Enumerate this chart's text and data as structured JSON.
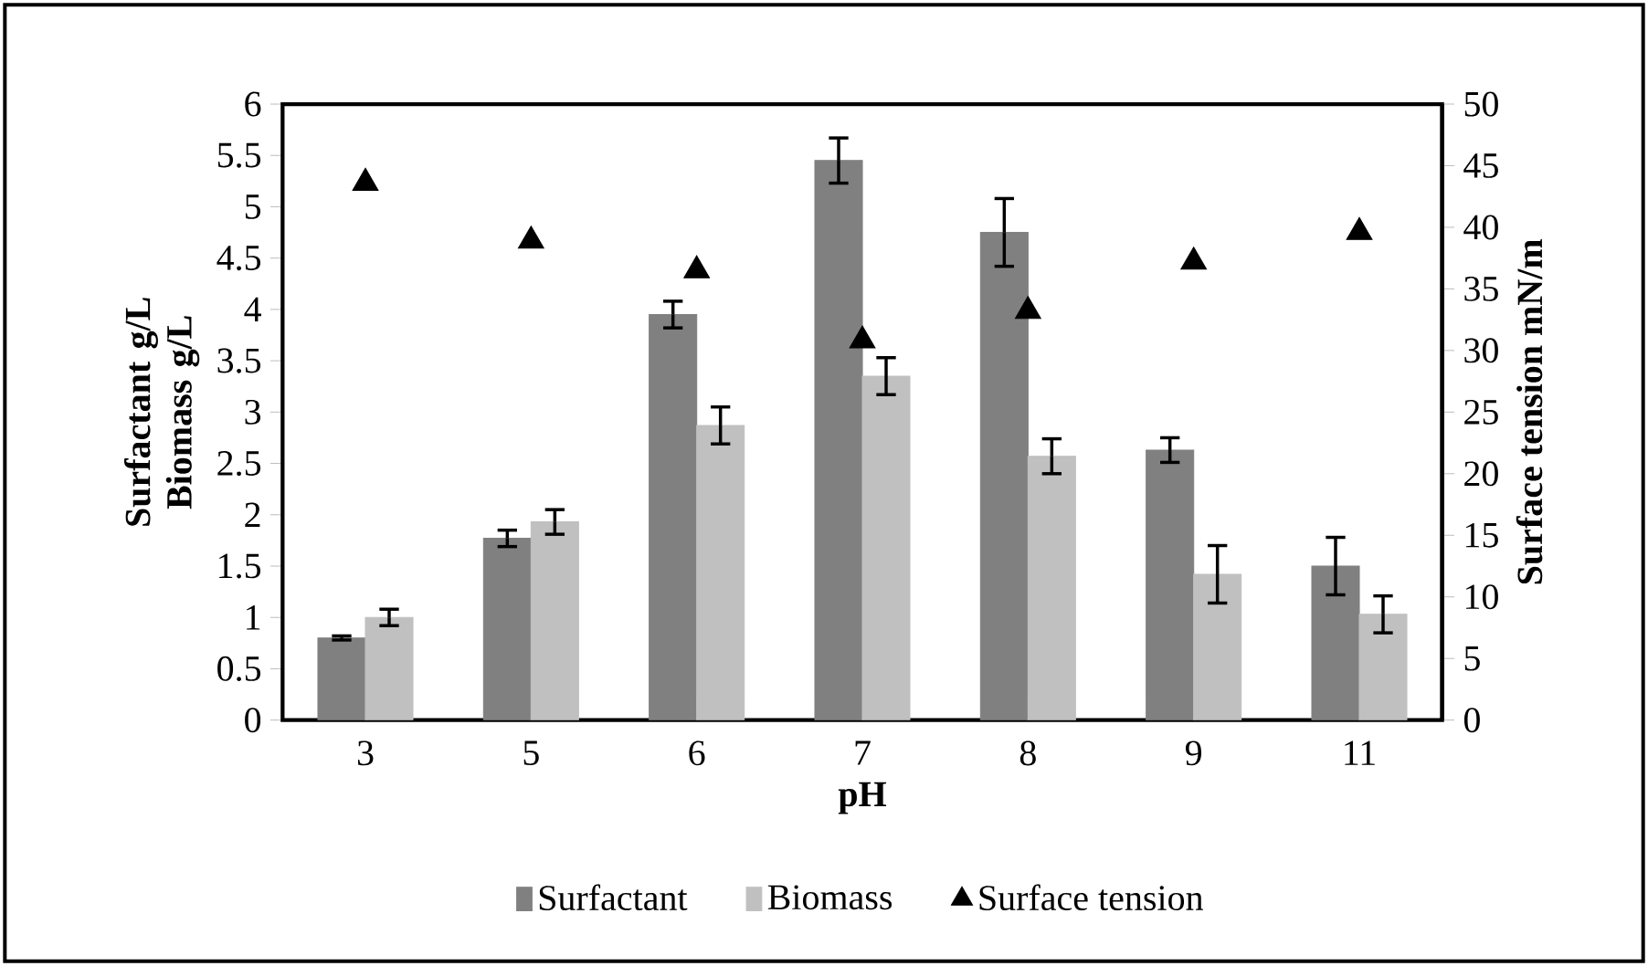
{
  "chart_data": {
    "type": "bar",
    "xlabel": "pH",
    "ylabel": "Surfactant g/L Biomass g/L",
    "y2label": "Surface tension mN/m",
    "categories": [
      "3",
      "5",
      "6",
      "7",
      "8",
      "9",
      "11"
    ],
    "series": [
      {
        "name": "Surfactant",
        "color": "#808080",
        "values": [
          0.8,
          1.77,
          3.95,
          5.45,
          4.75,
          2.63,
          1.5
        ],
        "errors": [
          0.02,
          0.08,
          0.13,
          0.22,
          0.33,
          0.12,
          0.28
        ]
      },
      {
        "name": "Biomass",
        "color": "#c0c0c0",
        "values": [
          1.0,
          1.93,
          2.87,
          3.35,
          2.57,
          1.42,
          1.03
        ],
        "errors": [
          0.08,
          0.12,
          0.18,
          0.18,
          0.17,
          0.28,
          0.18
        ]
      },
      {
        "name": "Surface tension",
        "type": "scatter",
        "axis": "y2",
        "marker": "triangle",
        "color": "#000000",
        "x": [
          "3",
          "5",
          "6",
          "7",
          "8",
          "9",
          "11"
        ],
        "values": [
          43.6,
          38.9,
          36.5,
          30.8,
          33.2,
          37.2,
          39.6
        ]
      }
    ],
    "ylim": [
      0,
      6
    ],
    "yticks": [
      0,
      0.5,
      1,
      1.5,
      2,
      2.5,
      3,
      3.5,
      4,
      4.5,
      5,
      5.5,
      6
    ],
    "y2lim": [
      0,
      50
    ],
    "y2ticks": [
      0,
      5,
      10,
      15,
      20,
      25,
      30,
      35,
      40,
      45,
      50
    ],
    "legend": "bottom"
  }
}
